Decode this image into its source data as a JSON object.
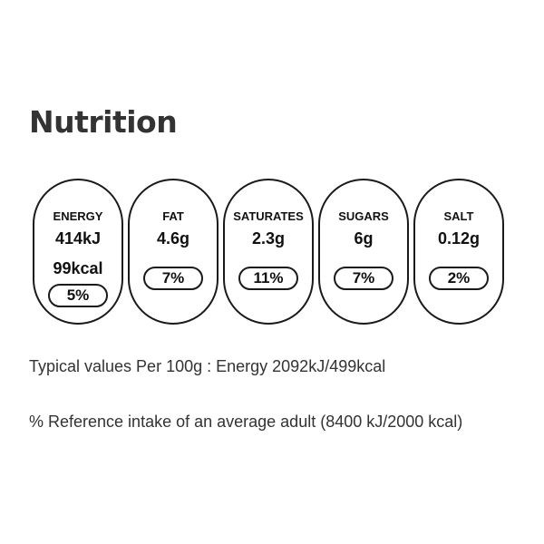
{
  "title": "Nutrition",
  "nutrients": [
    {
      "label": "ENERGY",
      "value": "414kJ",
      "value2": "99kcal",
      "percent": "5%"
    },
    {
      "label": "FAT",
      "value": "4.6g",
      "percent": "7%"
    },
    {
      "label": "SATURATES",
      "value": "2.3g",
      "percent": "11%"
    },
    {
      "label": "SUGARS",
      "value": "6g",
      "percent": "7%"
    },
    {
      "label": "SALT",
      "value": "0.12g",
      "percent": "2%"
    }
  ],
  "notes": {
    "typical_values": "Typical values Per 100g : Energy 2092kJ/499kcal",
    "reference_intake": "% Reference intake of an average adult (8400 kJ/2000 kcal)"
  },
  "colors": {
    "border": "#1a1a1a",
    "title": "#333333",
    "text": "#333333",
    "background": "#ffffff"
  }
}
